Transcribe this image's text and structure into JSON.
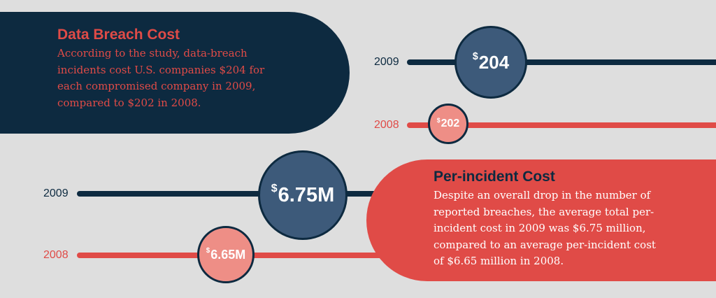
{
  "data_breach": {
    "title": "Data Breach Cost",
    "body": "According to the study, data-breach incidents cost U.S. companies $204 for each compromised company in 2009, compared to $202 in 2008.",
    "rows": [
      {
        "year": "2009",
        "currency": "$",
        "value": "204",
        "color": "#0d2a40"
      },
      {
        "year": "2008",
        "currency": "$",
        "value": "202",
        "color": "#e04b47"
      }
    ]
  },
  "per_incident": {
    "title": "Per-incident Cost",
    "body": "Despite an overall drop in the number of reported breaches, the average total per-incident cost in 2009 was $6.75 million, compared to an average per-incident cost of $6.65 million in 2008.",
    "rows": [
      {
        "year": "2009",
        "currency": "$",
        "value": "6.75M",
        "color": "#0d2a40"
      },
      {
        "year": "2008",
        "currency": "$",
        "value": "6.65M",
        "color": "#e04b47"
      }
    ]
  }
}
